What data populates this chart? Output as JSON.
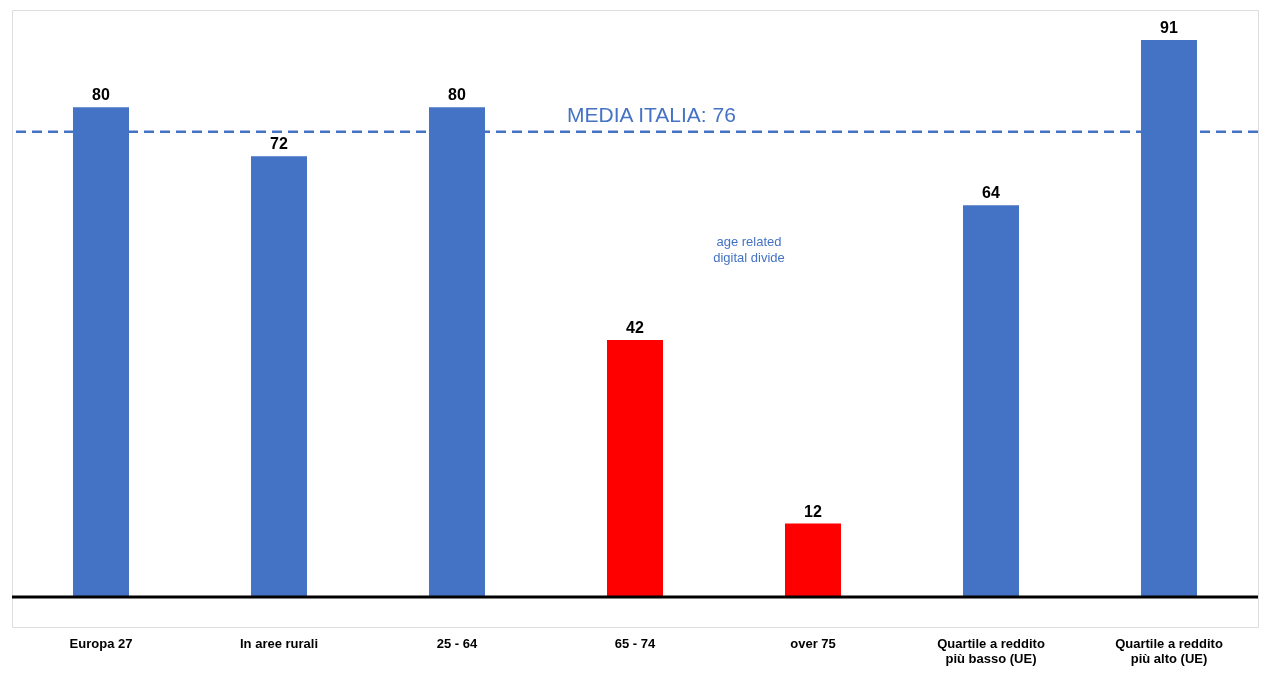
{
  "chart_data": {
    "type": "bar",
    "categories": [
      "Europa 27",
      "In aree rurali",
      "25 - 64",
      "65 - 74",
      "over 75",
      "Quartile a reddito\npiù basso (UE)",
      "Quartile a reddito\npiù alto (UE)"
    ],
    "values": [
      80,
      72,
      80,
      42,
      12,
      64,
      91
    ],
    "colors": [
      "#4472c4",
      "#4472c4",
      "#4472c4",
      "#ff0000",
      "#ff0000",
      "#4472c4",
      "#4472c4"
    ],
    "data_labels": true,
    "grid": false,
    "ref_lines": [
      {
        "axis": "y",
        "value": 76,
        "label": "MEDIA ITALIA: 76",
        "color": "#4472c4",
        "line_style": "dashed"
      }
    ],
    "annotations": [
      "age related\ndigital divide"
    ]
  }
}
